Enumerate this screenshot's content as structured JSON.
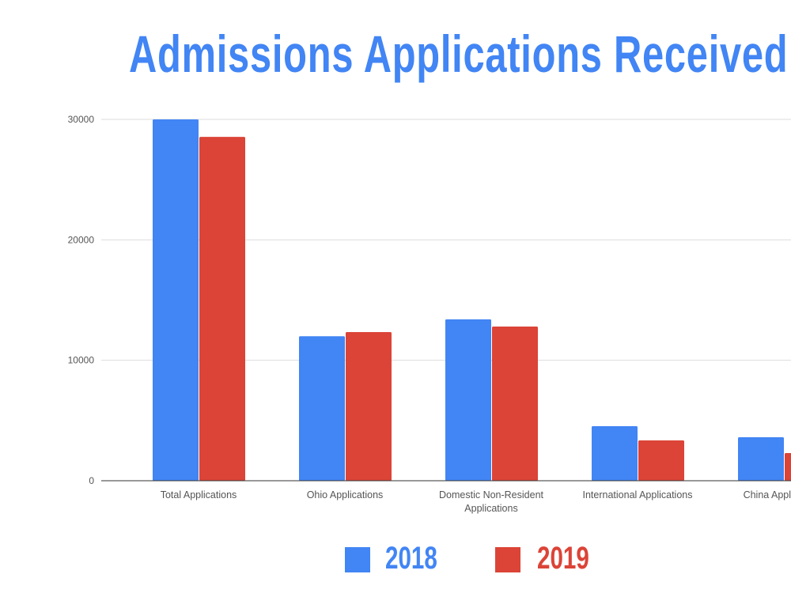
{
  "chart_data": {
    "type": "bar",
    "title": "Admissions Applications Received",
    "xlabel": "",
    "ylabel": "",
    "ylim": [
      0,
      30000
    ],
    "yticks": [
      "0",
      "10000",
      "20000",
      "30000"
    ],
    "grid": true,
    "legend_position": "bottom",
    "categories": [
      [
        "Total Applications"
      ],
      [
        "Ohio Applications"
      ],
      [
        "Domestic Non-Resident",
        "Applications"
      ],
      [
        "International Applications"
      ],
      [
        "China Applications"
      ]
    ],
    "series": [
      {
        "name": "2018",
        "color": "#4285f4",
        "values": [
          30000,
          12000,
          13400,
          4530,
          3610
        ]
      },
      {
        "name": "2019",
        "color": "#db4437",
        "values": [
          28550,
          12340,
          12800,
          3350,
          2300
        ]
      }
    ]
  }
}
